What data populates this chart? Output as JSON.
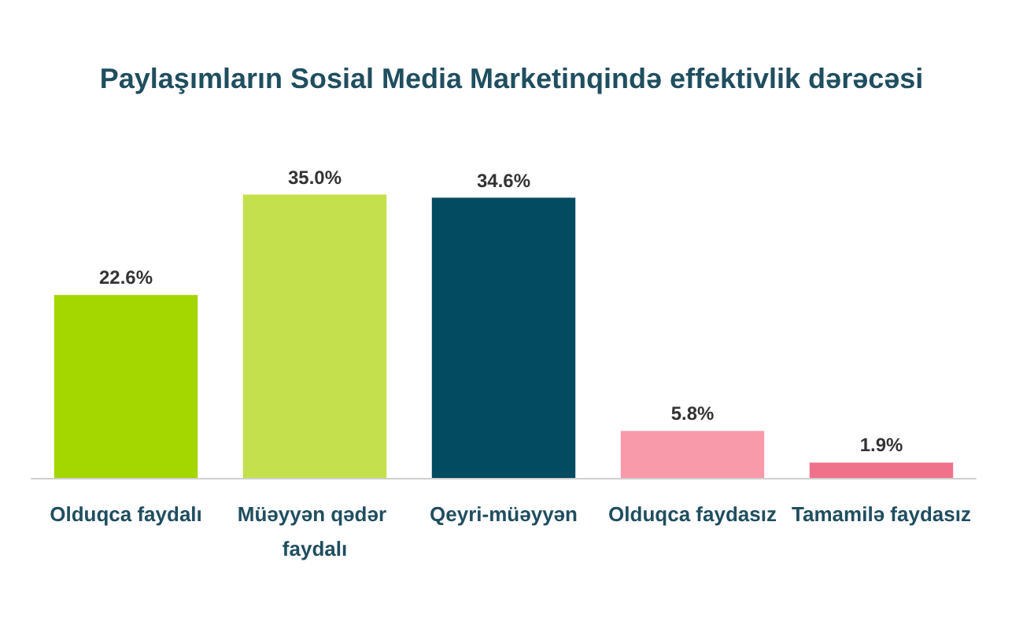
{
  "chart_data": {
    "type": "bar",
    "title": "Paylaşımların Sosial Media Marketinqində effektivlik dərəcəsi",
    "categories": [
      "Olduqca faydalı",
      "Müəyyən qədər faydalı",
      "Qeyri-müəyyən",
      "Olduqca faydasız",
      "Tamamilə faydasız"
    ],
    "values": [
      22.6,
      35.0,
      34.6,
      5.8,
      1.9
    ],
    "colors": [
      "#a4d600",
      "#c4e04c",
      "#034b61",
      "#f99aab",
      "#f0728a"
    ],
    "value_labels": [
      "22.6%",
      "35.0%",
      "34.6%",
      "5.8%",
      "1.9%"
    ],
    "grid": false
  }
}
